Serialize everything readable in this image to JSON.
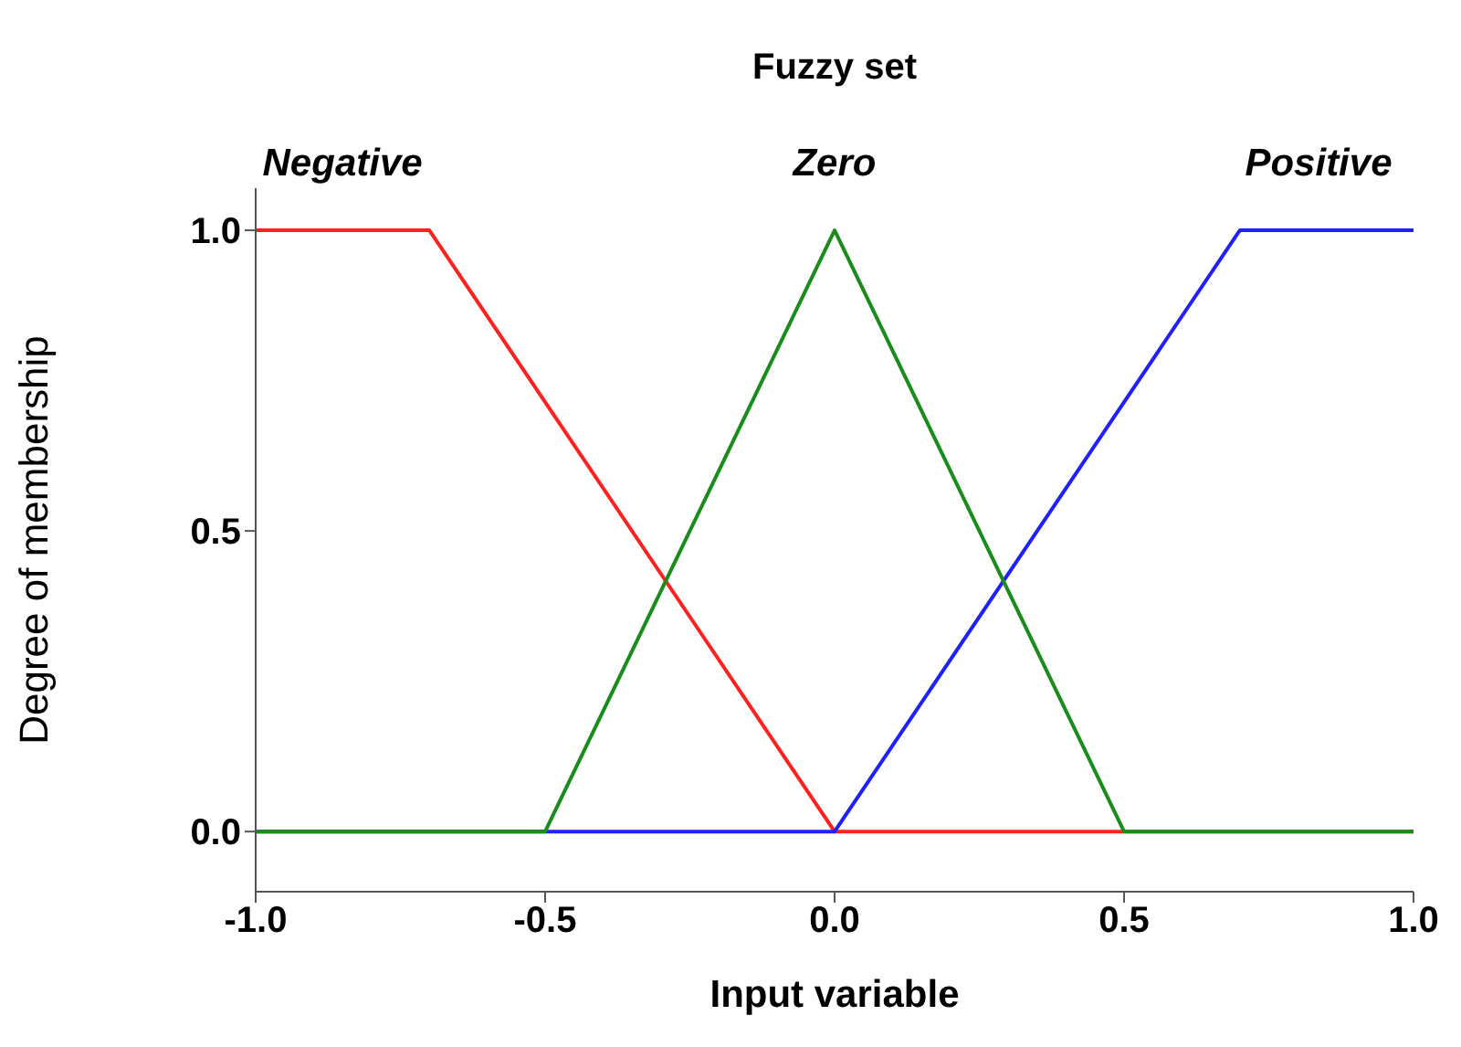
{
  "chart_data": {
    "type": "line",
    "title": "Fuzzy set",
    "xlabel": "Input variable",
    "ylabel": "Degree of membership",
    "series": [
      {
        "name": "Negative",
        "color": "#ff2020",
        "x": [
          -1,
          -0.7,
          0,
          1
        ],
        "values": [
          1,
          1,
          0,
          0
        ]
      },
      {
        "name": "Positive",
        "color": "#2020ff",
        "x": [
          -1,
          0,
          0.7,
          1
        ],
        "values": [
          0,
          0,
          1,
          1
        ]
      },
      {
        "name": "Zero",
        "color": "#1a8c1a",
        "x": [
          -1,
          -0.5,
          0,
          0.5,
          1
        ],
        "values": [
          0,
          0,
          1,
          0,
          0
        ]
      }
    ],
    "xlim": [
      -1,
      1
    ],
    "xticks": [
      {
        "value": -1,
        "label": "-1.0"
      },
      {
        "value": -0.5,
        "label": "-0.5"
      },
      {
        "value": 0,
        "label": "0.0"
      },
      {
        "value": 0.5,
        "label": "0.5"
      },
      {
        "value": 1,
        "label": "1.0"
      }
    ],
    "ylim": [
      -0.1,
      1.07
    ],
    "yticks": [
      {
        "value": 0,
        "label": "0.0"
      },
      {
        "value": 0.5,
        "label": "0.5"
      },
      {
        "value": 1,
        "label": "1.0"
      }
    ],
    "grid": false,
    "legend": false,
    "marker": "none",
    "line_style": "solid"
  }
}
